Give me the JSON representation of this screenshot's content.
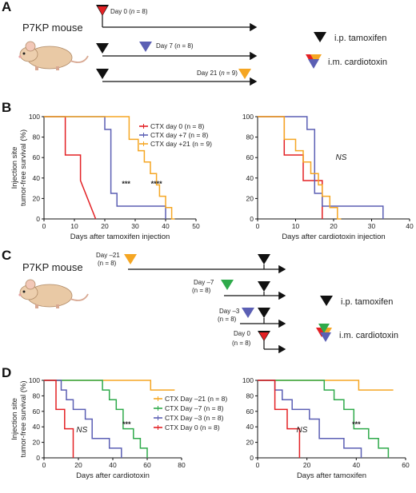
{
  "colors": {
    "red": "#e32024",
    "blue": "#5b5fb4",
    "orange": "#f5a623",
    "green": "#2eaa4a",
    "black": "#111111",
    "arrow": "#111111"
  },
  "panels": {
    "A": "A",
    "B": "B",
    "C": "C",
    "D": "D"
  },
  "panelA": {
    "mouse_label": "P7KP mouse",
    "rows": [
      {
        "day_text": "Day 0 (",
        "n_text": "n",
        "n_val": " = 8)",
        "color": "red"
      },
      {
        "day_text": "Day 7 (",
        "n_text": "n",
        "n_val": " = 8)",
        "color": "blue"
      },
      {
        "day_text": "Day 21 (",
        "n_text": "n",
        "n_val": " = 9)",
        "color": "orange"
      }
    ],
    "legend_tam": "i.p. tamoxifen",
    "legend_ctx": "i.m. cardiotoxin"
  },
  "panelC": {
    "mouse_label": "P7KP mouse",
    "rows": [
      {
        "day_text": "Day –21",
        "n_text": "(n = 8)",
        "color": "orange"
      },
      {
        "day_text": "Day –7",
        "n_text": "(n = 8)",
        "color": "green"
      },
      {
        "day_text": "Day –3",
        "n_text": "(n = 8)",
        "color": "blue"
      },
      {
        "day_text": "Day 0",
        "n_text": "(n = 8)",
        "color": "red"
      }
    ],
    "legend_tam": "i.p. tamoxifen",
    "legend_ctx": "i.m. cardiotoxin"
  },
  "chart_data": [
    {
      "id": "B-left",
      "type": "line",
      "step": true,
      "ylabel": "Injection site tumor-free survival (%)",
      "xlabel": "Days after tamoxifen injection",
      "xlim": [
        0,
        50
      ],
      "ylim": [
        0,
        100
      ],
      "xticks": [
        0,
        10,
        20,
        30,
        40,
        50
      ],
      "yticks": [
        0,
        20,
        40,
        60,
        80,
        100
      ],
      "legend_position": "top-right",
      "series": [
        {
          "name": "CTX day 0 (n = 8)",
          "color": "red",
          "x": [
            0,
            7,
            7,
            12,
            12,
            17
          ],
          "y": [
            100,
            100,
            62.5,
            62.5,
            37.5,
            0
          ]
        },
        {
          "name": "CTX day +7 (n = 8)",
          "color": "blue",
          "x": [
            0,
            20,
            20,
            22,
            22,
            24,
            24,
            40,
            40
          ],
          "y": [
            100,
            100,
            87.5,
            87.5,
            25,
            25,
            12.5,
            12.5,
            0
          ]
        },
        {
          "name": "CTX day +21 (n = 9)",
          "color": "orange",
          "x": [
            0,
            28,
            28,
            31,
            31,
            33,
            33,
            35,
            35,
            37,
            37,
            38,
            38,
            40,
            40,
            42,
            42,
            43,
            43
          ],
          "y": [
            100,
            100,
            77.8,
            77.8,
            66.7,
            66.7,
            55.6,
            55.6,
            44.4,
            44.4,
            33.3,
            33.3,
            22.2,
            22.2,
            11.1,
            11.1,
            0,
            0,
            0
          ]
        }
      ],
      "annotations": [
        {
          "text": "***",
          "x": 27,
          "y": 32
        },
        {
          "text": "****",
          "x": 37,
          "y": 32
        }
      ]
    },
    {
      "id": "B-right",
      "type": "line",
      "step": true,
      "xlabel": "Days after cardiotoxin injection",
      "xlim": [
        0,
        40
      ],
      "ylim": [
        0,
        100
      ],
      "xticks": [
        0,
        10,
        20,
        30,
        40
      ],
      "yticks": [
        0,
        20,
        40,
        60,
        80,
        100
      ],
      "series": [
        {
          "name": "CTX day 0",
          "color": "red",
          "x": [
            0,
            7,
            7,
            12,
            12,
            17,
            17
          ],
          "y": [
            100,
            100,
            62.5,
            62.5,
            37.5,
            37.5,
            0
          ]
        },
        {
          "name": "CTX day +7",
          "color": "blue",
          "x": [
            0,
            13,
            13,
            15,
            15,
            17,
            17,
            33,
            33
          ],
          "y": [
            100,
            100,
            87.5,
            87.5,
            25,
            25,
            12.5,
            12.5,
            0
          ]
        },
        {
          "name": "CTX day +21",
          "color": "orange",
          "x": [
            0,
            7,
            7,
            10,
            10,
            12,
            12,
            14,
            14,
            16,
            16,
            17,
            17,
            19,
            19,
            21,
            21,
            22,
            22
          ],
          "y": [
            100,
            100,
            77.8,
            77.8,
            66.7,
            66.7,
            55.6,
            55.6,
            44.4,
            44.4,
            33.3,
            33.3,
            22.2,
            22.2,
            11.1,
            11.1,
            0,
            0,
            0
          ]
        }
      ],
      "annotations": [
        {
          "text": "NS",
          "x": 22,
          "y": 58,
          "italic": true
        }
      ]
    },
    {
      "id": "D-left",
      "type": "line",
      "step": true,
      "ylabel": "Injection site tumor-free survival (%)",
      "xlabel": "Days after cardiotoxin",
      "xlim": [
        0,
        80
      ],
      "ylim": [
        0,
        100
      ],
      "xticks": [
        0,
        20,
        40,
        60,
        80
      ],
      "yticks": [
        0,
        20,
        40,
        60,
        80,
        100
      ],
      "legend_position": "right",
      "series": [
        {
          "name": "CTX Day –21 (n = 8)",
          "color": "orange",
          "x": [
            0,
            62,
            62,
            76
          ],
          "y": [
            100,
            100,
            87.5,
            87.5
          ]
        },
        {
          "name": "CTX Day –7 (n = 8)",
          "color": "green",
          "x": [
            0,
            34,
            34,
            38,
            38,
            42,
            42,
            46,
            46,
            52,
            52,
            56,
            56,
            60,
            60
          ],
          "y": [
            100,
            100,
            87.5,
            87.5,
            75,
            75,
            62.5,
            62.5,
            37.5,
            37.5,
            25,
            25,
            12.5,
            12.5,
            0
          ]
        },
        {
          "name": "CTX Day –3 (n = 8)",
          "color": "blue",
          "x": [
            0,
            10,
            10,
            13,
            13,
            17,
            17,
            24,
            24,
            28,
            28,
            38,
            38,
            45,
            45
          ],
          "y": [
            100,
            100,
            87.5,
            87.5,
            75,
            75,
            62.5,
            62.5,
            50,
            50,
            25,
            25,
            12.5,
            12.5,
            0
          ]
        },
        {
          "name": "CTX Day 0 (n = 8)",
          "color": "red",
          "x": [
            0,
            7,
            7,
            12,
            12,
            17,
            17
          ],
          "y": [
            100,
            100,
            62.5,
            62.5,
            37.5,
            37.5,
            0
          ]
        }
      ],
      "annotations": [
        {
          "text": "NS",
          "x": 22,
          "y": 33,
          "italic": true
        },
        {
          "text": "***",
          "x": 48,
          "y": 40
        }
      ]
    },
    {
      "id": "D-right",
      "type": "line",
      "step": true,
      "xlabel": "Days after tamoxifen",
      "xlim": [
        0,
        60
      ],
      "ylim": [
        0,
        100
      ],
      "xticks": [
        0,
        20,
        40,
        60
      ],
      "yticks": [
        0,
        20,
        40,
        60,
        80,
        100
      ],
      "series": [
        {
          "name": "CTX Day –21",
          "color": "orange",
          "x": [
            0,
            41,
            41,
            55
          ],
          "y": [
            100,
            100,
            87.5,
            87.5
          ]
        },
        {
          "name": "CTX Day –7",
          "color": "green",
          "x": [
            0,
            27,
            27,
            31,
            31,
            35,
            35,
            39,
            39,
            45,
            45,
            49,
            49,
            53,
            53
          ],
          "y": [
            100,
            100,
            87.5,
            87.5,
            75,
            75,
            62.5,
            62.5,
            37.5,
            37.5,
            25,
            25,
            12.5,
            12.5,
            0
          ]
        },
        {
          "name": "CTX Day –3",
          "color": "blue",
          "x": [
            0,
            7,
            7,
            10,
            10,
            14,
            14,
            21,
            21,
            25,
            25,
            35,
            35,
            42,
            42
          ],
          "y": [
            100,
            100,
            87.5,
            87.5,
            75,
            75,
            62.5,
            62.5,
            50,
            50,
            25,
            25,
            12.5,
            12.5,
            0
          ]
        },
        {
          "name": "CTX Day 0",
          "color": "red",
          "x": [
            0,
            7,
            7,
            12,
            12,
            17,
            17
          ],
          "y": [
            100,
            100,
            62.5,
            62.5,
            37.5,
            37.5,
            0
          ]
        }
      ],
      "annotations": [
        {
          "text": "NS",
          "x": 18,
          "y": 33,
          "italic": true
        },
        {
          "text": "***",
          "x": 40,
          "y": 40
        }
      ]
    }
  ]
}
